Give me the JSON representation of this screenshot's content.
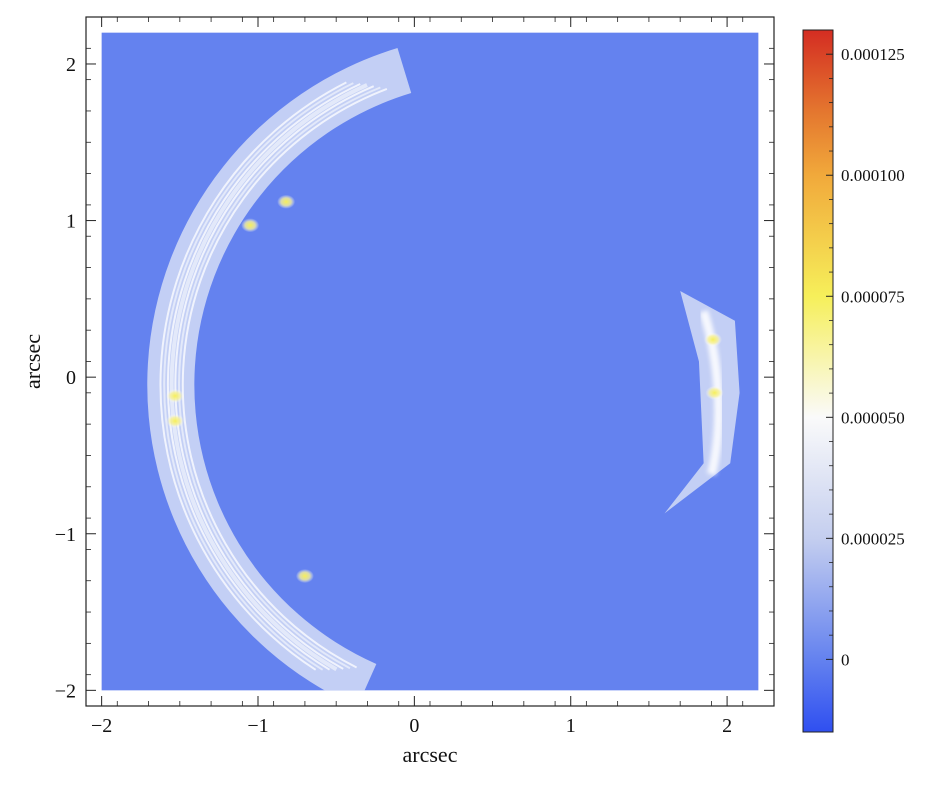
{
  "chart_data": {
    "type": "heatmap",
    "title": "",
    "xlabel": "arcsec",
    "ylabel": "arcsec",
    "xlim": [
      -2.1,
      2.3
    ],
    "ylim": [
      -2.1,
      2.3
    ],
    "x_ticks": [
      -2,
      -1,
      0,
      1,
      2
    ],
    "y_ticks": [
      -2,
      -1,
      0,
      1,
      2
    ],
    "x_tick_labels": [
      "−2",
      "−1",
      "0",
      "1",
      "2"
    ],
    "y_tick_labels": [
      "−2",
      "−1",
      "0",
      "1",
      "2"
    ],
    "data_extent": {
      "x": [
        -2.0,
        2.2
      ],
      "y": [
        -2.0,
        2.2
      ]
    },
    "background_value": 0,
    "background_color": "#6482ef",
    "colorbar": {
      "range": [
        -1.5e-05,
        0.00013
      ],
      "ticks": [
        0,
        2.5e-05,
        5e-05,
        7.5e-05,
        0.0001,
        0.000125
      ],
      "tick_labels": [
        "0",
        "0.000025",
        "0.000050",
        "0.000075",
        "0.000100",
        "0.000125"
      ],
      "colors": [
        {
          "value": -1.5e-05,
          "color": "#2f4ff0"
        },
        {
          "value": 0,
          "color": "#6482ef"
        },
        {
          "value": 2.5e-05,
          "color": "#c4ceef"
        },
        {
          "value": 5e-05,
          "color": "#fafafa"
        },
        {
          "value": 7.5e-05,
          "color": "#f6ef5a"
        },
        {
          "value": 0.0001,
          "color": "#f1a93b"
        },
        {
          "value": 0.000113,
          "color": "#e4772f"
        },
        {
          "value": 0.00013,
          "color": "#d42d22"
        }
      ]
    },
    "arcs": [
      {
        "name": "left arc",
        "center": [
          0.55,
          -0.05
        ],
        "r_inner": 1.95,
        "r_outer": 2.25,
        "angle_start_deg": 107,
        "angle_end_deg": 246,
        "peak_value": 6e-05
      }
    ],
    "counter_image": {
      "name": "right arc",
      "polygon": [
        [
          1.7,
          0.55
        ],
        [
          2.05,
          0.36
        ],
        [
          2.08,
          -0.1
        ],
        [
          2.02,
          -0.55
        ],
        [
          1.6,
          -0.87
        ],
        [
          1.85,
          -0.55
        ],
        [
          1.82,
          0.1
        ]
      ],
      "peak_value": 6e-05
    },
    "bright_spots": [
      {
        "x": -0.82,
        "y": 1.12,
        "value": 8e-05
      },
      {
        "x": -1.05,
        "y": 0.97,
        "value": 7e-05
      },
      {
        "x": -1.53,
        "y": -0.12,
        "value": 8e-05
      },
      {
        "x": -1.53,
        "y": -0.28,
        "value": 7e-05
      },
      {
        "x": -0.7,
        "y": -1.27,
        "value": 7e-05
      },
      {
        "x": 1.91,
        "y": 0.24,
        "value": 7e-05
      },
      {
        "x": 1.92,
        "y": -0.1,
        "value": 7e-05
      }
    ]
  }
}
